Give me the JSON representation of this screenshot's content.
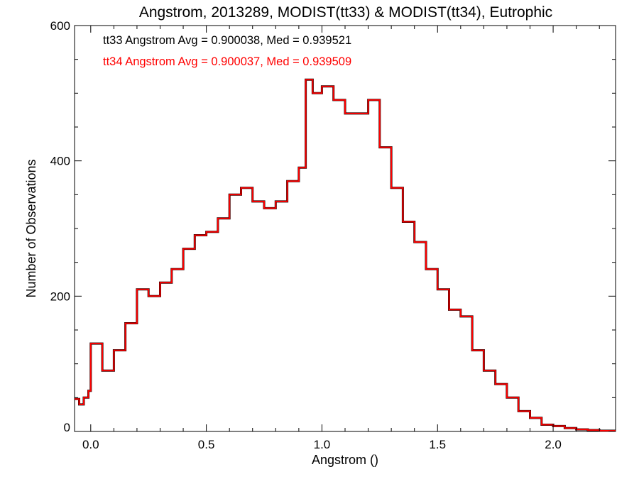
{
  "chart_data": {
    "type": "line",
    "step": true,
    "title": "Angstrom, 2013289, MODIST(tt33) & MODIST(tt34), Eutrophic",
    "xlabel": "Angstrom ()",
    "ylabel": "Number of Observations",
    "xlim": [
      -0.07,
      2.27
    ],
    "ylim": [
      0,
      600
    ],
    "x_ticks": [
      0.0,
      0.5,
      1.0,
      1.5,
      2.0
    ],
    "x_tick_labels": [
      "0.0",
      "0.5",
      "1.0",
      "1.5",
      "2.0"
    ],
    "y_ticks": [
      0,
      200,
      400,
      600
    ],
    "y_tick_labels": [
      "0",
      "200",
      "400",
      "600"
    ],
    "grid": false,
    "annotations": [
      {
        "text": "tt33 Angstrom Avg = 0.900038, Med = 0.939521",
        "color": "#000000"
      },
      {
        "text": "tt34 Angstrom Avg = 0.900037, Med = 0.939509",
        "color": "#ff0000"
      }
    ],
    "series": [
      {
        "color": "#000000",
        "x": [
          -0.07,
          -0.05,
          -0.03,
          -0.01,
          0.0,
          0.05,
          0.1,
          0.15,
          0.2,
          0.25,
          0.3,
          0.35,
          0.4,
          0.45,
          0.5,
          0.55,
          0.6,
          0.65,
          0.7,
          0.75,
          0.8,
          0.85,
          0.9,
          0.93,
          0.96,
          1.0,
          1.05,
          1.1,
          1.15,
          1.2,
          1.25,
          1.3,
          1.35,
          1.4,
          1.45,
          1.5,
          1.55,
          1.6,
          1.65,
          1.7,
          1.75,
          1.8,
          1.85,
          1.9,
          1.95,
          2.0,
          2.05,
          2.1,
          2.15,
          2.2,
          2.27
        ],
        "y": [
          48,
          40,
          50,
          60,
          130,
          90,
          120,
          160,
          210,
          200,
          220,
          240,
          270,
          290,
          295,
          315,
          350,
          360,
          340,
          330,
          340,
          370,
          390,
          520,
          500,
          510,
          490,
          470,
          470,
          490,
          420,
          360,
          310,
          280,
          240,
          210,
          180,
          170,
          120,
          90,
          70,
          50,
          30,
          20,
          10,
          8,
          5,
          3,
          2,
          1,
          1
        ]
      },
      {
        "color": "#ff0000",
        "x": [
          -0.07,
          -0.05,
          -0.03,
          -0.01,
          0.0,
          0.05,
          0.1,
          0.15,
          0.2,
          0.25,
          0.3,
          0.35,
          0.4,
          0.45,
          0.5,
          0.55,
          0.6,
          0.65,
          0.7,
          0.75,
          0.8,
          0.85,
          0.9,
          0.93,
          0.96,
          1.0,
          1.05,
          1.1,
          1.15,
          1.2,
          1.25,
          1.3,
          1.35,
          1.4,
          1.45,
          1.5,
          1.55,
          1.6,
          1.65,
          1.7,
          1.75,
          1.8,
          1.85,
          1.9,
          1.95,
          2.0,
          2.05,
          2.1,
          2.15,
          2.2,
          2.27
        ],
        "y": [
          48,
          40,
          50,
          60,
          130,
          90,
          120,
          160,
          210,
          200,
          220,
          240,
          270,
          290,
          295,
          315,
          350,
          360,
          340,
          330,
          340,
          370,
          390,
          520,
          500,
          510,
          490,
          470,
          470,
          490,
          420,
          360,
          310,
          280,
          240,
          210,
          180,
          170,
          120,
          90,
          70,
          50,
          30,
          20,
          10,
          8,
          5,
          3,
          2,
          1,
          1
        ]
      }
    ]
  }
}
